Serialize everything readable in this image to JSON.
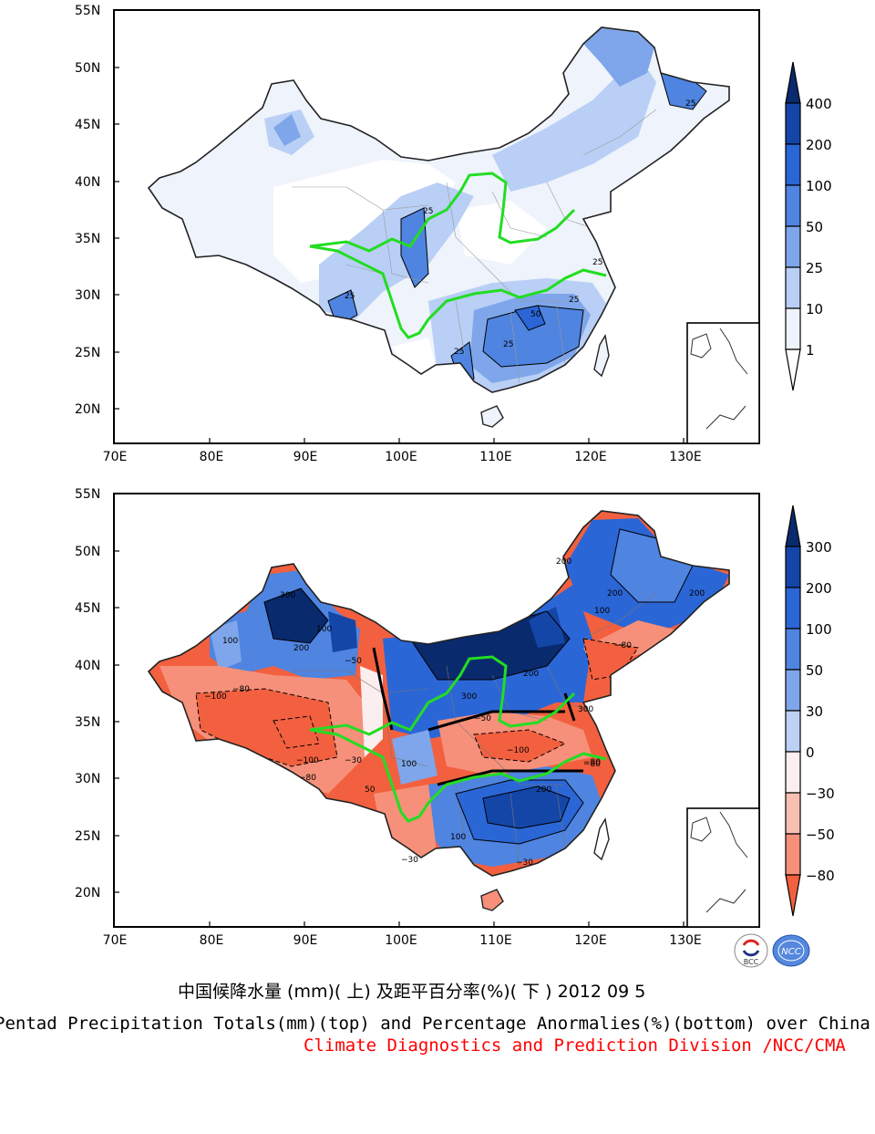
{
  "top_panel": {
    "lat_labels": [
      "55N",
      "50N",
      "45N",
      "40N",
      "35N",
      "30N",
      "25N",
      "20N"
    ],
    "lon_labels": [
      "70E",
      "80E",
      "90E",
      "100E",
      "110E",
      "120E",
      "130E"
    ],
    "colorbar": {
      "labels": [
        "400",
        "200",
        "100",
        "50",
        "25",
        "10",
        "1"
      ],
      "colors": [
        "#0a2a6e",
        "#1446a8",
        "#2b66d6",
        "#4f84e0",
        "#7fa6ea",
        "#b9cff5",
        "#eef3fc",
        "#ffffff"
      ]
    },
    "contour_labels": [
      "25",
      "25",
      "25",
      "25",
      "25",
      "25",
      "50",
      "25"
    ]
  },
  "bottom_panel": {
    "lat_labels": [
      "55N",
      "50N",
      "45N",
      "40N",
      "35N",
      "30N",
      "25N",
      "20N"
    ],
    "lon_labels": [
      "70E",
      "80E",
      "90E",
      "100E",
      "110E",
      "120E",
      "130E"
    ],
    "colorbar": {
      "labels": [
        "300",
        "200",
        "100",
        "50",
        "30",
        "0",
        "−30",
        "−50",
        "−80"
      ],
      "colors": [
        "#0a2a6e",
        "#1446a8",
        "#2b66d6",
        "#4f84e0",
        "#7fa6ea",
        "#bcd1f5",
        "#fbeeee",
        "#f8c0b2",
        "#f6907a",
        "#f2603f"
      ]
    },
    "contour_labels": [
      "300",
      "200",
      "100",
      "100",
      "−100",
      "−80",
      "−100",
      "−80",
      "−30",
      "−50",
      "300",
      "200",
      "100",
      "50",
      "−50",
      "−100",
      "−80",
      "200",
      "100",
      "300",
      "−30",
      "200",
      "100",
      "200",
      "200",
      "−80",
      "−80",
      "−30"
    ]
  },
  "logos": {
    "left": "BCC",
    "right": "NCC"
  },
  "caption": {
    "chinese": "中国候降水量 (mm)( 上) 及距平百分率(%)( 下 ) 2012 09 5",
    "english": "Pentad Precipitation Totals(mm)(top) and Percentage Anormalies(%)(bottom) over China",
    "credit": "Climate Diagnostics and Prediction Division /NCC/CMA"
  },
  "colors": {
    "river": "#22dd22",
    "credit_text": "#ff0000"
  }
}
